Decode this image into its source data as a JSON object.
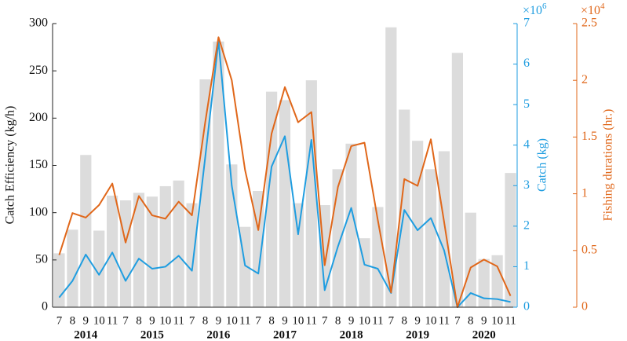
{
  "chart_data": {
    "type": "bar",
    "ylabel": "Catch Efficiency (kg/h)",
    "y2label": "Catch (kg)",
    "y3label": "Fishing durations (hr.)",
    "y2_multiplier": {
      "base": "×10",
      "exp": "6"
    },
    "y3_multiplier": {
      "base": "×10",
      "exp": "4"
    },
    "categories": [
      "7",
      "8",
      "9",
      "10",
      "11",
      "7",
      "8",
      "9",
      "10",
      "11",
      "7",
      "8",
      "9",
      "10",
      "11",
      "7",
      "8",
      "9",
      "10",
      "11",
      "7",
      "8",
      "9",
      "10",
      "11",
      "7",
      "8",
      "9",
      "10",
      "11",
      "7",
      "8",
      "9",
      "10",
      "11"
    ],
    "years": [
      "2014",
      "2015",
      "2016",
      "2017",
      "2018",
      "2019",
      "2020"
    ],
    "ylim": [
      0,
      300
    ],
    "yticks": [
      0,
      50,
      100,
      150,
      200,
      250,
      300
    ],
    "y2lim": [
      0,
      7
    ],
    "y2ticks": [
      0,
      1,
      2,
      3,
      4,
      5,
      6,
      7
    ],
    "y3lim": [
      0,
      2.5
    ],
    "y3ticks": [
      0,
      0.5,
      1,
      1.5,
      2,
      2.5
    ],
    "grid": false,
    "series": [
      {
        "type": "bar",
        "axis": "y",
        "color": "#dcdcdc",
        "values": [
          57,
          82,
          161,
          81,
          118,
          113,
          121,
          117,
          128,
          134,
          110,
          241,
          281,
          151,
          85,
          123,
          228,
          219,
          110,
          240,
          108,
          146,
          173,
          73,
          106,
          296,
          209,
          176,
          146,
          165,
          269,
          100,
          51,
          55,
          142
        ]
      },
      {
        "type": "line",
        "axis": "y2",
        "color": "#1f9de0",
        "values": [
          0.24,
          0.65,
          1.3,
          0.8,
          1.35,
          0.65,
          1.2,
          0.95,
          1.0,
          1.27,
          0.9,
          3.7,
          6.57,
          3.0,
          1.03,
          0.83,
          3.47,
          4.22,
          1.8,
          4.13,
          0.42,
          1.5,
          2.45,
          1.05,
          0.95,
          0.35,
          2.4,
          1.9,
          2.2,
          1.4,
          0.0,
          0.35,
          0.22,
          0.2,
          0.13
        ]
      },
      {
        "type": "line",
        "axis": "y3",
        "color": "#e0671a",
        "values": [
          0.46,
          0.83,
          0.79,
          0.9,
          1.09,
          0.57,
          0.98,
          0.81,
          0.78,
          0.93,
          0.81,
          1.63,
          2.38,
          2.0,
          1.21,
          0.68,
          1.53,
          1.94,
          1.63,
          1.72,
          0.37,
          1.06,
          1.42,
          1.45,
          0.77,
          0.13,
          1.13,
          1.07,
          1.48,
          0.75,
          0.0,
          0.35,
          0.42,
          0.36,
          0.1
        ]
      }
    ]
  }
}
